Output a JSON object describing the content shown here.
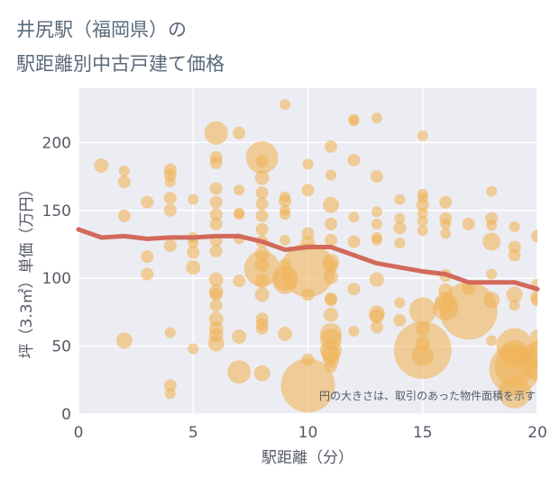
{
  "chart_data": {
    "type": "scatter",
    "title_line1": "井尻駅（福岡県）の",
    "title_line2": "駅距離別中古戸建て価格",
    "xlabel": "駅距離（分）",
    "ylabel": "坪（3.3㎡）単価（万円）",
    "annotation": "円の大きさは、取引のあった物件面積を示す",
    "xlim": [
      0,
      20
    ],
    "ylim": [
      0,
      240
    ],
    "x_ticks": [
      0,
      5,
      10,
      15,
      20
    ],
    "y_ticks": [
      0,
      50,
      100,
      150,
      200
    ],
    "grid": true,
    "colors": {
      "bubble": "#f0b45a",
      "trend": "#d2695a",
      "plot_bg": "#ecedf3",
      "grid": "#ffffff"
    },
    "trend_line": {
      "x": [
        0,
        1,
        2,
        3,
        4,
        5,
        6,
        7,
        8,
        9,
        10,
        11,
        12,
        13,
        14,
        15,
        16,
        17,
        18,
        19,
        20
      ],
      "y": [
        136,
        130,
        131,
        129,
        130,
        130,
        131,
        131,
        127,
        121,
        123,
        123,
        117,
        111,
        108,
        105,
        103,
        97,
        97,
        97,
        92
      ]
    },
    "bubbles": [
      {
        "x": 1,
        "y": 183,
        "r": 8
      },
      {
        "x": 2,
        "y": 179,
        "r": 6
      },
      {
        "x": 2,
        "y": 171,
        "r": 7
      },
      {
        "x": 2,
        "y": 146,
        "r": 7
      },
      {
        "x": 2,
        "y": 54,
        "r": 9
      },
      {
        "x": 3,
        "y": 156,
        "r": 7
      },
      {
        "x": 3,
        "y": 116,
        "r": 7
      },
      {
        "x": 3,
        "y": 103,
        "r": 7
      },
      {
        "x": 4,
        "y": 180,
        "r": 7
      },
      {
        "x": 4,
        "y": 176,
        "r": 7
      },
      {
        "x": 4,
        "y": 171,
        "r": 6
      },
      {
        "x": 4,
        "y": 159,
        "r": 7
      },
      {
        "x": 4,
        "y": 150,
        "r": 7
      },
      {
        "x": 4,
        "y": 124,
        "r": 7
      },
      {
        "x": 4,
        "y": 60,
        "r": 6
      },
      {
        "x": 4,
        "y": 21,
        "r": 7
      },
      {
        "x": 4,
        "y": 15,
        "r": 6
      },
      {
        "x": 5,
        "y": 158,
        "r": 6
      },
      {
        "x": 5,
        "y": 130,
        "r": 6
      },
      {
        "x": 5,
        "y": 126,
        "r": 6
      },
      {
        "x": 5,
        "y": 119,
        "r": 7
      },
      {
        "x": 5,
        "y": 108,
        "r": 8
      },
      {
        "x": 5,
        "y": 48,
        "r": 6
      },
      {
        "x": 6,
        "y": 207,
        "r": 13
      },
      {
        "x": 6,
        "y": 189,
        "r": 7
      },
      {
        "x": 6,
        "y": 185,
        "r": 7
      },
      {
        "x": 6,
        "y": 166,
        "r": 7
      },
      {
        "x": 6,
        "y": 156,
        "r": 7
      },
      {
        "x": 6,
        "y": 147,
        "r": 7
      },
      {
        "x": 6,
        "y": 140,
        "r": 7
      },
      {
        "x": 6,
        "y": 128,
        "r": 7
      },
      {
        "x": 6,
        "y": 120,
        "r": 7
      },
      {
        "x": 6,
        "y": 99,
        "r": 8
      },
      {
        "x": 6,
        "y": 90,
        "r": 8
      },
      {
        "x": 6,
        "y": 88,
        "r": 7
      },
      {
        "x": 6,
        "y": 80,
        "r": 7
      },
      {
        "x": 6,
        "y": 70,
        "r": 8
      },
      {
        "x": 6,
        "y": 63,
        "r": 8
      },
      {
        "x": 6,
        "y": 58,
        "r": 8
      },
      {
        "x": 6,
        "y": 52,
        "r": 9
      },
      {
        "x": 7,
        "y": 207,
        "r": 7
      },
      {
        "x": 7,
        "y": 165,
        "r": 6
      },
      {
        "x": 7,
        "y": 148,
        "r": 6
      },
      {
        "x": 7,
        "y": 147,
        "r": 6
      },
      {
        "x": 7,
        "y": 129,
        "r": 6
      },
      {
        "x": 7,
        "y": 98,
        "r": 7
      },
      {
        "x": 7,
        "y": 57,
        "r": 8
      },
      {
        "x": 7,
        "y": 31,
        "r": 13
      },
      {
        "x": 8,
        "y": 189,
        "r": 18
      },
      {
        "x": 8,
        "y": 186,
        "r": 7
      },
      {
        "x": 8,
        "y": 174,
        "r": 8
      },
      {
        "x": 8,
        "y": 163,
        "r": 7
      },
      {
        "x": 8,
        "y": 155,
        "r": 7
      },
      {
        "x": 8,
        "y": 146,
        "r": 7
      },
      {
        "x": 8,
        "y": 136,
        "r": 7
      },
      {
        "x": 8,
        "y": 127,
        "r": 7
      },
      {
        "x": 8,
        "y": 118,
        "r": 8
      },
      {
        "x": 8,
        "y": 110,
        "r": 8
      },
      {
        "x": 8,
        "y": 107,
        "r": 20
      },
      {
        "x": 8,
        "y": 98,
        "r": 8
      },
      {
        "x": 8,
        "y": 88,
        "r": 8
      },
      {
        "x": 8,
        "y": 70,
        "r": 7
      },
      {
        "x": 8,
        "y": 66,
        "r": 7
      },
      {
        "x": 8,
        "y": 63,
        "r": 7
      },
      {
        "x": 8,
        "y": 30,
        "r": 9
      },
      {
        "x": 9,
        "y": 228,
        "r": 6
      },
      {
        "x": 9,
        "y": 160,
        "r": 6
      },
      {
        "x": 9,
        "y": 157,
        "r": 7
      },
      {
        "x": 9,
        "y": 150,
        "r": 6
      },
      {
        "x": 9,
        "y": 147,
        "r": 6
      },
      {
        "x": 9,
        "y": 128,
        "r": 6
      },
      {
        "x": 9,
        "y": 110,
        "r": 7
      },
      {
        "x": 9,
        "y": 100,
        "r": 14
      },
      {
        "x": 9,
        "y": 97,
        "r": 13
      },
      {
        "x": 9,
        "y": 59,
        "r": 8
      },
      {
        "x": 10,
        "y": 184,
        "r": 6
      },
      {
        "x": 10,
        "y": 165,
        "r": 7
      },
      {
        "x": 10,
        "y": 133,
        "r": 7
      },
      {
        "x": 10,
        "y": 126,
        "r": 8
      },
      {
        "x": 10,
        "y": 106,
        "r": 30
      },
      {
        "x": 10,
        "y": 88,
        "r": 7
      },
      {
        "x": 10,
        "y": 40,
        "r": 7
      },
      {
        "x": 10,
        "y": 21,
        "r": 30
      },
      {
        "x": 11,
        "y": 197,
        "r": 7
      },
      {
        "x": 11,
        "y": 176,
        "r": 6
      },
      {
        "x": 11,
        "y": 154,
        "r": 9
      },
      {
        "x": 11,
        "y": 140,
        "r": 7
      },
      {
        "x": 11,
        "y": 128,
        "r": 7
      },
      {
        "x": 11,
        "y": 112,
        "r": 9
      },
      {
        "x": 11,
        "y": 109,
        "r": 8
      },
      {
        "x": 11,
        "y": 101,
        "r": 8
      },
      {
        "x": 11,
        "y": 85,
        "r": 7
      },
      {
        "x": 11,
        "y": 84,
        "r": 7
      },
      {
        "x": 11,
        "y": 73,
        "r": 8
      },
      {
        "x": 11,
        "y": 59,
        "r": 12
      },
      {
        "x": 11,
        "y": 55,
        "r": 12
      },
      {
        "x": 11,
        "y": 47,
        "r": 12
      },
      {
        "x": 11,
        "y": 44,
        "r": 10
      },
      {
        "x": 11,
        "y": 40,
        "r": 9
      },
      {
        "x": 11,
        "y": 35,
        "r": 7
      },
      {
        "x": 12,
        "y": 217,
        "r": 6
      },
      {
        "x": 12,
        "y": 216,
        "r": 6
      },
      {
        "x": 12,
        "y": 187,
        "r": 7
      },
      {
        "x": 12,
        "y": 145,
        "r": 6
      },
      {
        "x": 12,
        "y": 127,
        "r": 7
      },
      {
        "x": 12,
        "y": 92,
        "r": 7
      },
      {
        "x": 12,
        "y": 61,
        "r": 6
      },
      {
        "x": 13,
        "y": 218,
        "r": 6
      },
      {
        "x": 13,
        "y": 175,
        "r": 7
      },
      {
        "x": 13,
        "y": 149,
        "r": 6
      },
      {
        "x": 13,
        "y": 140,
        "r": 6
      },
      {
        "x": 13,
        "y": 130,
        "r": 6
      },
      {
        "x": 13,
        "y": 128,
        "r": 6
      },
      {
        "x": 13,
        "y": 99,
        "r": 8
      },
      {
        "x": 13,
        "y": 74,
        "r": 9
      },
      {
        "x": 13,
        "y": 72,
        "r": 8
      },
      {
        "x": 13,
        "y": 64,
        "r": 7
      },
      {
        "x": 14,
        "y": 158,
        "r": 6
      },
      {
        "x": 14,
        "y": 144,
        "r": 6
      },
      {
        "x": 14,
        "y": 137,
        "r": 7
      },
      {
        "x": 14,
        "y": 126,
        "r": 6
      },
      {
        "x": 14,
        "y": 82,
        "r": 6
      },
      {
        "x": 14,
        "y": 69,
        "r": 7
      },
      {
        "x": 15,
        "y": 205,
        "r": 6
      },
      {
        "x": 15,
        "y": 162,
        "r": 6
      },
      {
        "x": 15,
        "y": 159,
        "r": 6
      },
      {
        "x": 15,
        "y": 154,
        "r": 7
      },
      {
        "x": 15,
        "y": 148,
        "r": 6
      },
      {
        "x": 15,
        "y": 142,
        "r": 6
      },
      {
        "x": 15,
        "y": 135,
        "r": 6
      },
      {
        "x": 15,
        "y": 76,
        "r": 15
      },
      {
        "x": 15,
        "y": 63,
        "r": 8
      },
      {
        "x": 15,
        "y": 52,
        "r": 8
      },
      {
        "x": 15,
        "y": 47,
        "r": 32
      },
      {
        "x": 15,
        "y": 43,
        "r": 12
      },
      {
        "x": 16,
        "y": 156,
        "r": 7
      },
      {
        "x": 16,
        "y": 144,
        "r": 7
      },
      {
        "x": 16,
        "y": 140,
        "r": 6
      },
      {
        "x": 16,
        "y": 133,
        "r": 6
      },
      {
        "x": 16,
        "y": 102,
        "r": 7
      },
      {
        "x": 16,
        "y": 91,
        "r": 8
      },
      {
        "x": 16,
        "y": 82,
        "r": 12
      },
      {
        "x": 16,
        "y": 78,
        "r": 14
      },
      {
        "x": 17,
        "y": 140,
        "r": 7
      },
      {
        "x": 17,
        "y": 93,
        "r": 8
      },
      {
        "x": 17,
        "y": 76,
        "r": 32
      },
      {
        "x": 18,
        "y": 164,
        "r": 6
      },
      {
        "x": 18,
        "y": 144,
        "r": 7
      },
      {
        "x": 18,
        "y": 139,
        "r": 6
      },
      {
        "x": 18,
        "y": 127,
        "r": 10
      },
      {
        "x": 18,
        "y": 103,
        "r": 6
      },
      {
        "x": 18,
        "y": 84,
        "r": 9
      },
      {
        "x": 18,
        "y": 54,
        "r": 6
      },
      {
        "x": 19,
        "y": 138,
        "r": 6
      },
      {
        "x": 19,
        "y": 123,
        "r": 7
      },
      {
        "x": 19,
        "y": 117,
        "r": 7
      },
      {
        "x": 19,
        "y": 88,
        "r": 9
      },
      {
        "x": 19,
        "y": 80,
        "r": 6
      },
      {
        "x": 19,
        "y": 50,
        "r": 20
      },
      {
        "x": 19,
        "y": 44,
        "r": 16
      },
      {
        "x": 19,
        "y": 35,
        "r": 22
      },
      {
        "x": 19,
        "y": 33,
        "r": 28
      },
      {
        "x": 19,
        "y": 16,
        "r": 18
      },
      {
        "x": 20,
        "y": 131,
        "r": 7
      },
      {
        "x": 20,
        "y": 95,
        "r": 7
      },
      {
        "x": 20,
        "y": 86,
        "r": 8
      },
      {
        "x": 20,
        "y": 84,
        "r": 7
      },
      {
        "x": 20,
        "y": 57,
        "r": 8
      },
      {
        "x": 20,
        "y": 49,
        "r": 8
      },
      {
        "x": 20,
        "y": 43,
        "r": 16
      },
      {
        "x": 20,
        "y": 37,
        "r": 18
      }
    ]
  }
}
